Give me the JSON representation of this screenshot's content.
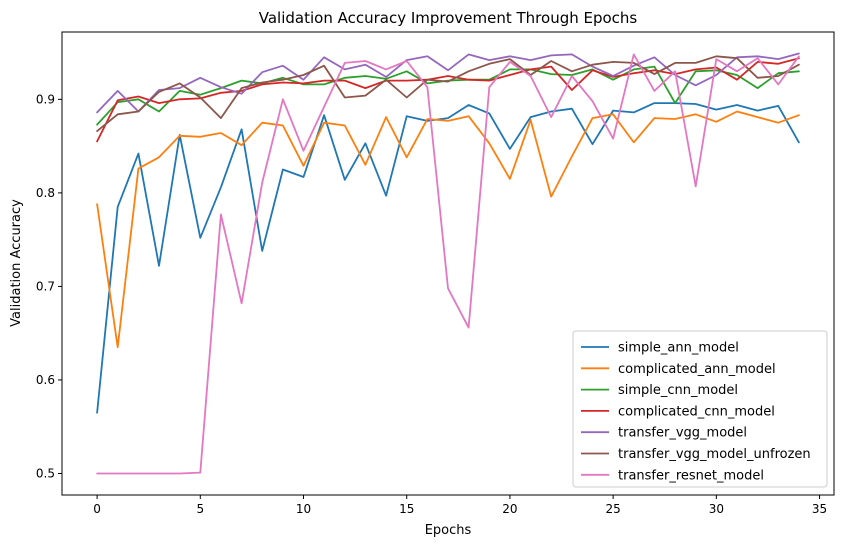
{
  "chart_data": {
    "type": "line",
    "title": "Validation Accuracy Improvement Through Epochs",
    "xlabel": "Epochs",
    "ylabel": "Validation Accuracy",
    "xlim": [
      -1.7,
      35.7
    ],
    "ylim": [
      0.477,
      0.972
    ],
    "xticks": [
      0,
      5,
      10,
      15,
      20,
      25,
      30,
      35
    ],
    "yticks": [
      0.5,
      0.6,
      0.7,
      0.8,
      0.9
    ],
    "grid": false,
    "legend_position": "lower-right",
    "x": [
      0,
      1,
      2,
      3,
      4,
      5,
      6,
      7,
      8,
      9,
      10,
      11,
      12,
      13,
      14,
      15,
      16,
      17,
      18,
      19,
      20,
      21,
      22,
      23,
      24,
      25,
      26,
      27,
      28,
      29,
      30,
      31,
      32,
      33,
      34
    ],
    "series": [
      {
        "name": "simple_ann_model",
        "color": "#1f77b4",
        "values": [
          0.565,
          0.785,
          0.842,
          0.722,
          0.862,
          0.752,
          0.806,
          0.868,
          0.738,
          0.825,
          0.817,
          0.883,
          0.814,
          0.853,
          0.797,
          0.882,
          0.877,
          0.88,
          0.894,
          0.885,
          0.847,
          0.881,
          0.887,
          0.89,
          0.852,
          0.888,
          0.886,
          0.896,
          0.896,
          0.895,
          0.889,
          0.894,
          0.888,
          0.893,
          0.854
        ]
      },
      {
        "name": "complicated_ann_model",
        "color": "#ff7f0e",
        "values": [
          0.788,
          0.635,
          0.826,
          0.838,
          0.861,
          0.86,
          0.864,
          0.851,
          0.875,
          0.872,
          0.829,
          0.875,
          0.872,
          0.83,
          0.881,
          0.838,
          0.879,
          0.877,
          0.882,
          0.853,
          0.815,
          0.878,
          0.796,
          0.839,
          0.88,
          0.884,
          0.854,
          0.88,
          0.879,
          0.884,
          0.876,
          0.887,
          0.881,
          0.875,
          0.883
        ]
      },
      {
        "name": "simple_cnn_model",
        "color": "#2ca02c",
        "values": [
          0.873,
          0.897,
          0.9,
          0.887,
          0.909,
          0.905,
          0.912,
          0.92,
          0.917,
          0.923,
          0.916,
          0.916,
          0.923,
          0.925,
          0.922,
          0.93,
          0.917,
          0.92,
          0.921,
          0.921,
          0.932,
          0.932,
          0.927,
          0.926,
          0.932,
          0.921,
          0.932,
          0.935,
          0.896,
          0.93,
          0.931,
          0.926,
          0.912,
          0.928,
          0.93
        ]
      },
      {
        "name": "complicated_cnn_model",
        "color": "#d62728",
        "values": [
          0.855,
          0.899,
          0.903,
          0.896,
          0.9,
          0.901,
          0.907,
          0.909,
          0.916,
          0.918,
          0.917,
          0.92,
          0.92,
          0.912,
          0.92,
          0.92,
          0.921,
          0.925,
          0.921,
          0.92,
          0.926,
          0.932,
          0.935,
          0.91,
          0.931,
          0.924,
          0.928,
          0.931,
          0.927,
          0.932,
          0.934,
          0.921,
          0.94,
          0.938,
          0.944
        ]
      },
      {
        "name": "transfer_vgg_model",
        "color": "#9467bd",
        "values": [
          0.886,
          0.909,
          0.887,
          0.91,
          0.912,
          0.923,
          0.913,
          0.906,
          0.929,
          0.936,
          0.921,
          0.945,
          0.932,
          0.937,
          0.924,
          0.942,
          0.946,
          0.931,
          0.948,
          0.942,
          0.946,
          0.942,
          0.947,
          0.948,
          0.935,
          0.925,
          0.936,
          0.945,
          0.926,
          0.915,
          0.926,
          0.945,
          0.946,
          0.943,
          0.949
        ]
      },
      {
        "name": "transfer_vgg_model_unfrozen",
        "color": "#8c564b",
        "values": [
          0.866,
          0.884,
          0.887,
          0.908,
          0.917,
          0.902,
          0.88,
          0.912,
          0.918,
          0.921,
          0.926,
          0.936,
          0.902,
          0.904,
          0.921,
          0.902,
          0.921,
          0.919,
          0.93,
          0.938,
          0.943,
          0.926,
          0.941,
          0.93,
          0.937,
          0.94,
          0.939,
          0.927,
          0.939,
          0.939,
          0.946,
          0.944,
          0.923,
          0.925,
          0.937
        ]
      },
      {
        "name": "transfer_resnet_model",
        "color": "#e377c2",
        "values": [
          0.5,
          0.5,
          0.5,
          0.5,
          0.5,
          0.501,
          0.777,
          0.682,
          0.811,
          0.9,
          0.845,
          0.892,
          0.939,
          0.941,
          0.932,
          0.941,
          0.913,
          0.698,
          0.656,
          0.913,
          0.94,
          0.925,
          0.881,
          0.925,
          0.898,
          0.858,
          0.948,
          0.909,
          0.93,
          0.807,
          0.943,
          0.93,
          0.944,
          0.916,
          0.946
        ]
      }
    ]
  }
}
